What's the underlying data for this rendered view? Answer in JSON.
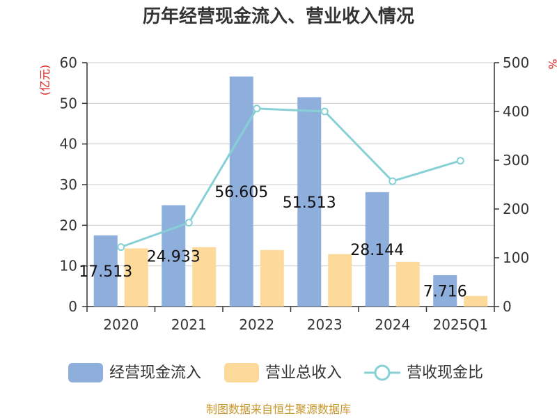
{
  "chart_data": {
    "type": "bar",
    "title": "历年经营现金流入、营业收入情况",
    "left_unit": "(亿元)",
    "right_unit": "%",
    "categories": [
      "2020",
      "2021",
      "2022",
      "2023",
      "2024",
      "2025Q1"
    ],
    "left_axis": {
      "min": 0,
      "max": 60,
      "ticks": [
        0,
        10,
        20,
        30,
        40,
        50,
        60
      ]
    },
    "right_axis": {
      "min": 0,
      "max": 500,
      "ticks": [
        0,
        100,
        200,
        300,
        400,
        500
      ]
    },
    "grid": true,
    "legend_position": "bottom",
    "series": [
      {
        "name": "经营现金流入",
        "type": "bar",
        "axis": "left",
        "color": "#8eaedc",
        "values": [
          17.513,
          24.933,
          56.605,
          51.513,
          28.144,
          7.716
        ],
        "labels": [
          "17.513",
          "24.933",
          "56.605",
          "51.513",
          "28.144",
          "7.716"
        ]
      },
      {
        "name": "营业总收入",
        "type": "bar",
        "axis": "left",
        "color": "#fdd99a",
        "values": [
          14.3,
          14.6,
          13.9,
          12.9,
          11.0,
          2.6
        ]
      },
      {
        "name": "营收现金比",
        "type": "line",
        "axis": "right",
        "color": "#86d0d6",
        "values": [
          122,
          172,
          406,
          400,
          257,
          299
        ]
      }
    ]
  },
  "source": "制图数据来自恒生聚源数据库"
}
